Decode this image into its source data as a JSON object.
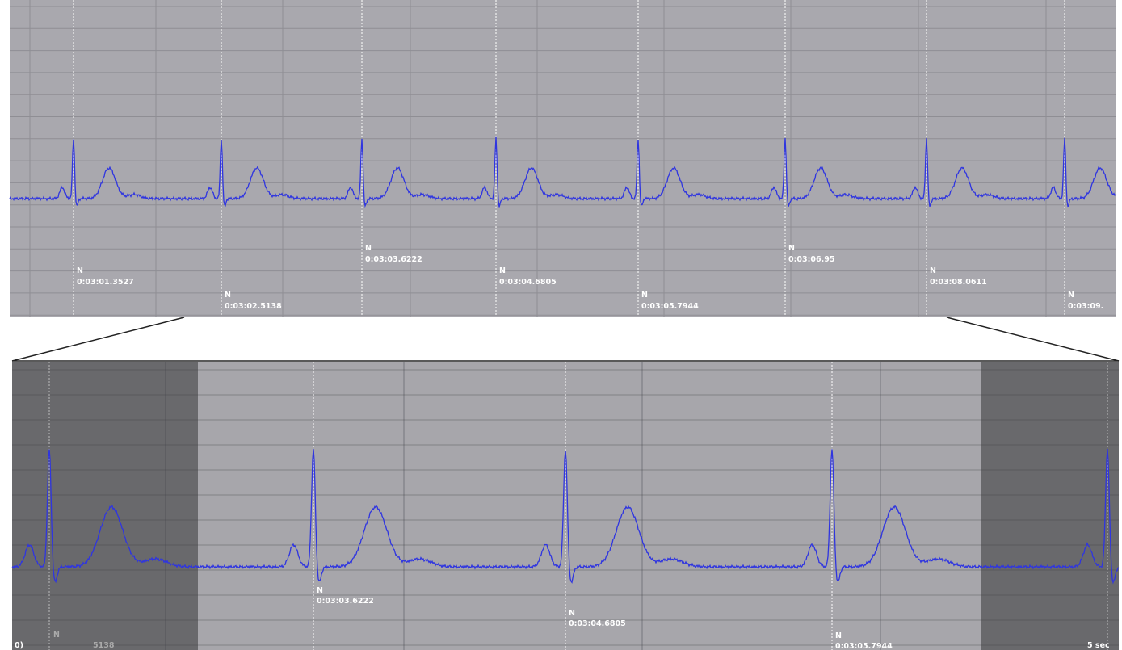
{
  "top_panel": {
    "markers": [
      {
        "label": "N",
        "time": "0:03:01.3527"
      },
      {
        "label": "N",
        "time": "0:03:02.5138"
      },
      {
        "label": "N",
        "time": "0:03:03.6222"
      },
      {
        "label": "N",
        "time": "0:03:04.6805"
      },
      {
        "label": "N",
        "time": "0:03:05.7944"
      },
      {
        "label": "N",
        "time": "0:03:06.95"
      },
      {
        "label": "N",
        "time": "0:03:08.0611"
      },
      {
        "label": "N",
        "time": "0:03:09."
      }
    ]
  },
  "bottom_panel": {
    "markers": [
      {
        "label": "N",
        "time": "0:03:03.6222"
      },
      {
        "label": "N",
        "time": "0:03:04.6805"
      },
      {
        "label": "N",
        "time": "0:03:05.7944"
      }
    ],
    "edge_labels": {
      "left": "0)",
      "left_marker": "N",
      "left_time": "5138",
      "right": "5 sec"
    }
  }
}
